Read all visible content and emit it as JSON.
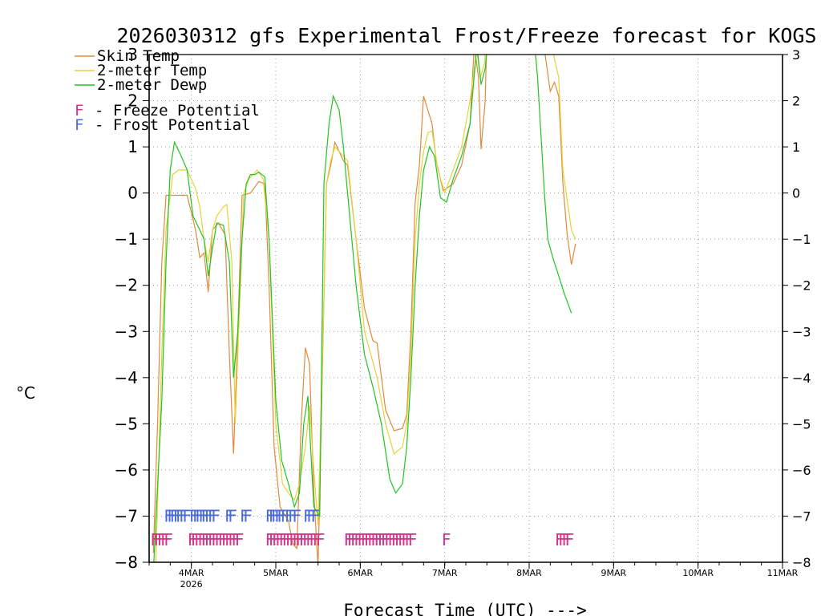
{
  "chart_data": {
    "type": "line",
    "title": "2026030312 gfs Experimental Frost/Freeze forecast for KOGS",
    "xlabel": "Forecast Time (UTC) --->",
    "ylabel": "°C",
    "ylim": [
      -8,
      3
    ],
    "yticks": [
      -8,
      -7,
      -6,
      -5,
      -4,
      -3,
      -2,
      -1,
      0,
      1,
      2,
      3
    ],
    "xlim": [
      3.5,
      11.0
    ],
    "xticks": [
      {
        "x": 4,
        "label": "4MAR",
        "sub": "2026"
      },
      {
        "x": 5,
        "label": "5MAR",
        "sub": ""
      },
      {
        "x": 6,
        "label": "6MAR",
        "sub": ""
      },
      {
        "x": 7,
        "label": "7MAR",
        "sub": ""
      },
      {
        "x": 8,
        "label": "8MAR",
        "sub": ""
      },
      {
        "x": 9,
        "label": "9MAR",
        "sub": ""
      },
      {
        "x": 10,
        "label": "10MAR",
        "sub": ""
      },
      {
        "x": 11,
        "label": "11MAR",
        "sub": ""
      }
    ],
    "grid": true,
    "legend": {
      "position": "top-left",
      "entries": [
        {
          "label": "Skin Temp",
          "color": "#e08a3c"
        },
        {
          "label": "2-meter Temp",
          "color": "#e6d23a"
        },
        {
          "label": "2-meter Dewp",
          "color": "#22c422"
        }
      ],
      "potentials": [
        {
          "symbol": "F",
          "text": "- Freeze Potential",
          "color": "#d6338a"
        },
        {
          "symbol": "F",
          "text": "- Frost Potential",
          "color": "#4a6ad8"
        }
      ]
    },
    "series": [
      {
        "name": "Skin Temp",
        "color": "#e08a3c",
        "points": [
          [
            3.55,
            -7.8
          ],
          [
            3.6,
            -5
          ],
          [
            3.65,
            -1.5
          ],
          [
            3.7,
            -0.05
          ],
          [
            3.95,
            -0.05
          ],
          [
            4.05,
            -0.8
          ],
          [
            4.1,
            -1.4
          ],
          [
            4.15,
            -1.3
          ],
          [
            4.2,
            -2.15
          ],
          [
            4.25,
            -0.8
          ],
          [
            4.32,
            -0.65
          ],
          [
            4.4,
            -0.9
          ],
          [
            4.45,
            -3.5
          ],
          [
            4.5,
            -5.65
          ],
          [
            4.55,
            -3
          ],
          [
            4.6,
            -0.05
          ],
          [
            4.7,
            0
          ],
          [
            4.8,
            0.25
          ],
          [
            4.87,
            0.2
          ],
          [
            4.92,
            -2
          ],
          [
            4.98,
            -5.5
          ],
          [
            5.05,
            -6.8
          ],
          [
            5.15,
            -7.1
          ],
          [
            5.2,
            -7.6
          ],
          [
            5.25,
            -7.7
          ],
          [
            5.3,
            -5
          ],
          [
            5.35,
            -3.35
          ],
          [
            5.4,
            -3.7
          ],
          [
            5.45,
            -6.5
          ],
          [
            5.5,
            -8.1
          ],
          [
            5.55,
            -4
          ],
          [
            5.6,
            0.2
          ],
          [
            5.65,
            0.6
          ],
          [
            5.7,
            1.1
          ],
          [
            5.8,
            0.7
          ],
          [
            5.85,
            0.6
          ],
          [
            5.95,
            -1
          ],
          [
            6.05,
            -2.5
          ],
          [
            6.15,
            -3.2
          ],
          [
            6.2,
            -3.25
          ],
          [
            6.3,
            -4.7
          ],
          [
            6.4,
            -5.15
          ],
          [
            6.5,
            -5.1
          ],
          [
            6.55,
            -4.8
          ],
          [
            6.6,
            -3
          ],
          [
            6.65,
            -0.2
          ],
          [
            6.7,
            0.6
          ],
          [
            6.75,
            2.1
          ],
          [
            6.8,
            1.8
          ],
          [
            6.85,
            1.5
          ],
          [
            6.9,
            0.7
          ],
          [
            6.98,
            0.05
          ],
          [
            7.1,
            0.2
          ],
          [
            7.2,
            0.6
          ],
          [
            7.3,
            1.5
          ],
          [
            7.35,
            3.2
          ],
          [
            7.4,
            2.5
          ],
          [
            7.43,
            0.95
          ],
          [
            7.48,
            2
          ],
          [
            7.5,
            3.5
          ],
          [
            8.15,
            3.5
          ],
          [
            8.2,
            2.85
          ],
          [
            8.25,
            2.2
          ],
          [
            8.3,
            2.4
          ],
          [
            8.35,
            2.1
          ],
          [
            8.4,
            0.2
          ],
          [
            8.45,
            -0.9
          ],
          [
            8.5,
            -1.55
          ],
          [
            8.55,
            -1.1
          ]
        ]
      },
      {
        "name": "2-meter Temp",
        "color": "#e6d23a",
        "points": [
          [
            3.58,
            -8
          ],
          [
            3.65,
            -3.5
          ],
          [
            3.7,
            -0.8
          ],
          [
            3.78,
            0.4
          ],
          [
            3.85,
            0.5
          ],
          [
            3.95,
            0.5
          ],
          [
            4.05,
            0.1
          ],
          [
            4.1,
            -0.3
          ],
          [
            4.15,
            -1
          ],
          [
            4.2,
            -1.5
          ],
          [
            4.25,
            -0.8
          ],
          [
            4.3,
            -0.5
          ],
          [
            4.38,
            -0.3
          ],
          [
            4.42,
            -0.25
          ],
          [
            4.48,
            -1.5
          ],
          [
            4.52,
            -5
          ],
          [
            4.57,
            -2.5
          ],
          [
            4.62,
            0
          ],
          [
            4.68,
            0.3
          ],
          [
            4.78,
            0.5
          ],
          [
            4.85,
            0.3
          ],
          [
            4.92,
            -1
          ],
          [
            5,
            -5
          ],
          [
            5.08,
            -6.3
          ],
          [
            5.15,
            -6.5
          ],
          [
            5.22,
            -6.65
          ],
          [
            5.28,
            -6.3
          ],
          [
            5.35,
            -5.5
          ],
          [
            5.4,
            -4.6
          ],
          [
            5.45,
            -6
          ],
          [
            5.5,
            -7.2
          ],
          [
            5.56,
            -3
          ],
          [
            5.6,
            0.2
          ],
          [
            5.65,
            0.7
          ],
          [
            5.7,
            1
          ],
          [
            5.8,
            0.8
          ],
          [
            5.85,
            0.7
          ],
          [
            5.95,
            -1
          ],
          [
            6.05,
            -3
          ],
          [
            6.2,
            -4
          ],
          [
            6.3,
            -5
          ],
          [
            6.4,
            -5.65
          ],
          [
            6.5,
            -5.5
          ],
          [
            6.55,
            -5
          ],
          [
            6.6,
            -3.5
          ],
          [
            6.65,
            -1
          ],
          [
            6.7,
            0.2
          ],
          [
            6.75,
            0.9
          ],
          [
            6.8,
            1.3
          ],
          [
            6.85,
            1.35
          ],
          [
            6.92,
            0.5
          ],
          [
            7,
            0
          ],
          [
            7.1,
            0.5
          ],
          [
            7.2,
            1
          ],
          [
            7.3,
            2
          ],
          [
            7.38,
            3.1
          ],
          [
            7.42,
            2.5
          ],
          [
            7.47,
            2.8
          ],
          [
            7.5,
            3.5
          ],
          [
            8.15,
            3.5
          ],
          [
            8.25,
            3.5
          ],
          [
            8.3,
            2.9
          ],
          [
            8.35,
            2.5
          ],
          [
            8.4,
            0.5
          ],
          [
            8.5,
            -0.8
          ],
          [
            8.55,
            -1
          ]
        ]
      },
      {
        "name": "2-meter Dewp",
        "color": "#22c422",
        "points": [
          [
            3.55,
            -8.2
          ],
          [
            3.65,
            -4.5
          ],
          [
            3.7,
            -1.5
          ],
          [
            3.75,
            0.5
          ],
          [
            3.8,
            1.1
          ],
          [
            3.88,
            0.8
          ],
          [
            3.95,
            0.5
          ],
          [
            4.02,
            -0.5
          ],
          [
            4.1,
            -0.8
          ],
          [
            4.15,
            -1
          ],
          [
            4.2,
            -1.8
          ],
          [
            4.25,
            -1.2
          ],
          [
            4.3,
            -0.65
          ],
          [
            4.38,
            -0.7
          ],
          [
            4.45,
            -1.5
          ],
          [
            4.5,
            -4
          ],
          [
            4.55,
            -3
          ],
          [
            4.6,
            -1
          ],
          [
            4.65,
            0.2
          ],
          [
            4.7,
            0.4
          ],
          [
            4.75,
            0.4
          ],
          [
            4.8,
            0.45
          ],
          [
            4.87,
            0.35
          ],
          [
            4.92,
            -1
          ],
          [
            5,
            -4.5
          ],
          [
            5.07,
            -5.8
          ],
          [
            5.15,
            -6.3
          ],
          [
            5.22,
            -6.8
          ],
          [
            5.28,
            -6.5
          ],
          [
            5.33,
            -5
          ],
          [
            5.38,
            -4.4
          ],
          [
            5.45,
            -6.8
          ],
          [
            5.52,
            -7
          ],
          [
            5.57,
            0.2
          ],
          [
            5.63,
            1.5
          ],
          [
            5.68,
            2.1
          ],
          [
            5.75,
            1.8
          ],
          [
            5.8,
            1
          ],
          [
            5.85,
            0
          ],
          [
            5.95,
            -2
          ],
          [
            6.05,
            -3.5
          ],
          [
            6.15,
            -4.2
          ],
          [
            6.25,
            -5
          ],
          [
            6.35,
            -6.2
          ],
          [
            6.42,
            -6.5
          ],
          [
            6.5,
            -6.3
          ],
          [
            6.55,
            -5.5
          ],
          [
            6.6,
            -4
          ],
          [
            6.65,
            -2
          ],
          [
            6.7,
            -0.5
          ],
          [
            6.75,
            0.5
          ],
          [
            6.82,
            1
          ],
          [
            6.88,
            0.8
          ],
          [
            6.95,
            -0.1
          ],
          [
            7.02,
            -0.2
          ],
          [
            7.1,
            0.3
          ],
          [
            7.2,
            0.8
          ],
          [
            7.3,
            1.5
          ],
          [
            7.38,
            3.2
          ],
          [
            7.43,
            2.35
          ],
          [
            7.48,
            2.7
          ],
          [
            7.52,
            3.5
          ],
          [
            8.05,
            3.5
          ],
          [
            8.1,
            2.5
          ],
          [
            8.18,
            0
          ],
          [
            8.22,
            -1
          ],
          [
            8.28,
            -1.4
          ],
          [
            8.35,
            -1.8
          ],
          [
            8.42,
            -2.2
          ],
          [
            8.5,
            -2.6
          ]
        ]
      }
    ],
    "frost_marks": [
      3.73,
      3.77,
      3.8,
      3.84,
      3.87,
      3.91,
      3.95,
      4.03,
      4.07,
      4.1,
      4.14,
      4.17,
      4.21,
      4.25,
      4.29,
      4.45,
      4.49,
      4.63,
      4.67,
      4.93,
      4.97,
      5.0,
      5.04,
      5.07,
      5.11,
      5.16,
      5.2,
      5.25,
      5.38,
      5.42,
      5.47
    ],
    "freeze_marks": [
      3.57,
      3.61,
      3.65,
      3.69,
      3.73,
      4.01,
      4.05,
      4.09,
      4.13,
      4.17,
      4.21,
      4.25,
      4.29,
      4.33,
      4.37,
      4.41,
      4.45,
      4.49,
      4.53,
      4.57,
      4.93,
      4.97,
      5.01,
      5.05,
      5.09,
      5.13,
      5.17,
      5.21,
      5.25,
      5.29,
      5.33,
      5.37,
      5.41,
      5.45,
      5.49,
      5.53,
      5.86,
      5.9,
      5.94,
      5.98,
      6.02,
      6.06,
      6.1,
      6.14,
      6.18,
      6.22,
      6.26,
      6.3,
      6.34,
      6.38,
      6.42,
      6.46,
      6.5,
      6.54,
      6.58,
      6.62,
      7.02,
      8.36,
      8.4,
      8.44,
      8.48
    ]
  }
}
